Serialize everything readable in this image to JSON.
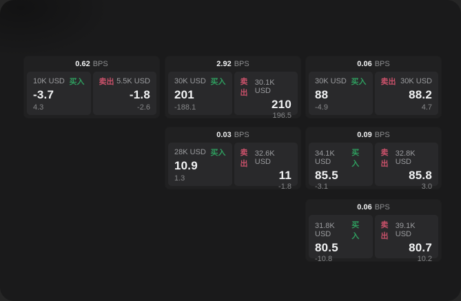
{
  "theme": {
    "buy_color": "#2f9e5f",
    "sell_color": "#c9516a",
    "panel_bg": "#1a1a1b",
    "card_bg": "#202021",
    "tile_bg": "#29292b"
  },
  "labels": {
    "buy": "买入",
    "sell": "卖出",
    "bps_unit": "BPS"
  },
  "cards": [
    {
      "bps": "0.62",
      "buy": {
        "size": "10K USD",
        "price": "-3.7",
        "delta": "4.3"
      },
      "sell": {
        "size": "5.5K USD",
        "price": "-1.8",
        "delta": "-2.6"
      }
    },
    {
      "bps": "2.92",
      "buy": {
        "size": "30K USD",
        "price": "201",
        "delta": "-188.1"
      },
      "sell": {
        "size": "30.1K USD",
        "price": "210",
        "delta": "196.5"
      }
    },
    {
      "bps": "0.06",
      "buy": {
        "size": "30K USD",
        "price": "88",
        "delta": "-4.9"
      },
      "sell": {
        "size": "30K USD",
        "price": "88.2",
        "delta": "4.7"
      }
    },
    {
      "bps": "0.03",
      "buy": {
        "size": "28K USD",
        "price": "10.9",
        "delta": "1.3"
      },
      "sell": {
        "size": "32.6K USD",
        "price": "11",
        "delta": "-1.8"
      }
    },
    {
      "bps": "0.09",
      "buy": {
        "size": "34.1K USD",
        "price": "85.5",
        "delta": "-3.1"
      },
      "sell": {
        "size": "32.8K USD",
        "price": "85.8",
        "delta": "3.0"
      }
    },
    {
      "bps": "0.06",
      "buy": {
        "size": "31.8K USD",
        "price": "80.5",
        "delta": "-10.8"
      },
      "sell": {
        "size": "39.1K USD",
        "price": "80.7",
        "delta": "10.2"
      }
    }
  ]
}
